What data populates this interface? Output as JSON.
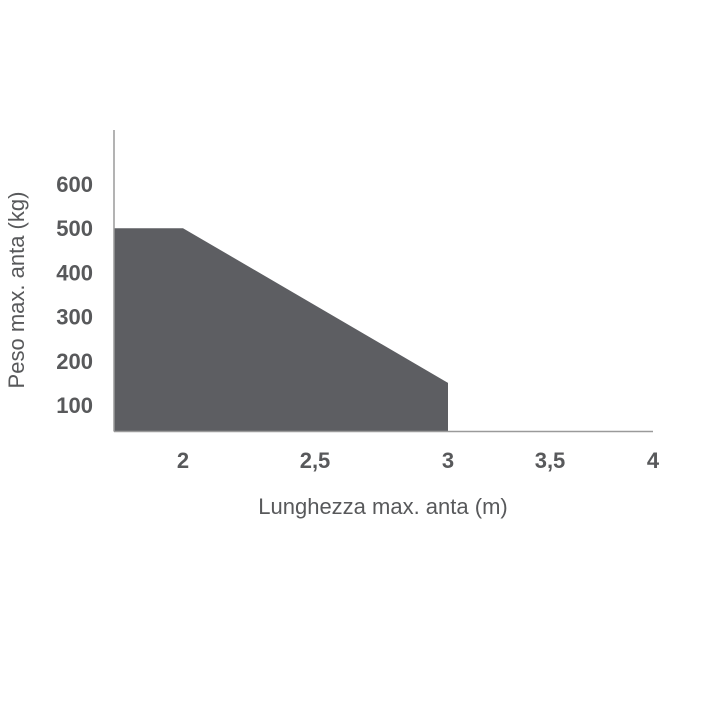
{
  "chart_data": {
    "type": "area",
    "title": "",
    "xlabel": "Lunghezza max. anta (m)",
    "ylabel": "Peso max. anta (kg)",
    "x_ticks": [
      "2",
      "2,5",
      "3",
      "3,5",
      "4"
    ],
    "x_tick_values": [
      2,
      2.5,
      3,
      3.5,
      4
    ],
    "y_ticks": [
      "100",
      "200",
      "300",
      "400",
      "500",
      "600"
    ],
    "y_tick_values": [
      100,
      200,
      300,
      400,
      500,
      600
    ],
    "xlim": [
      1.74,
      4
    ],
    "ylim": [
      40,
      660
    ],
    "grid": false,
    "series": [
      {
        "x": [
          1.74,
          2,
          3,
          3
        ],
        "y": [
          500,
          500,
          150,
          40
        ]
      }
    ],
    "colors": {
      "fill": "#5d5e62",
      "axis": "#9a9a9a",
      "text": "#58595b"
    }
  }
}
